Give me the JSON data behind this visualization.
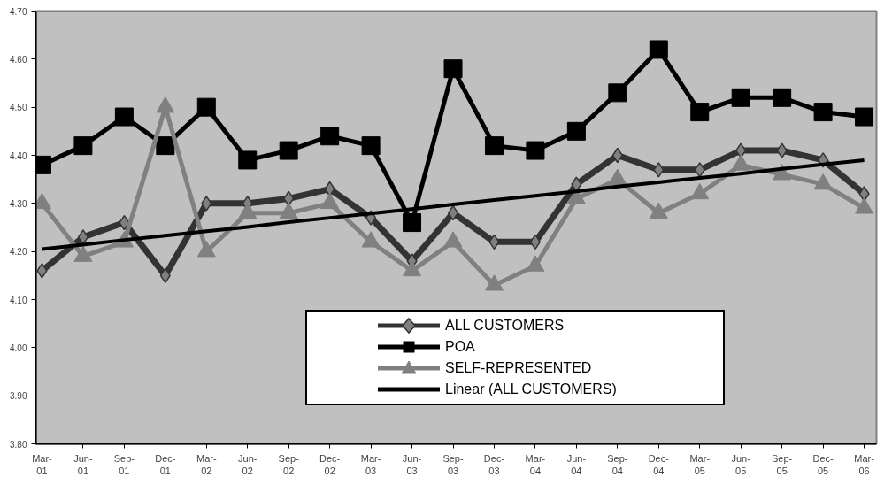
{
  "chart_data": {
    "type": "line",
    "categories": [
      "Mar-01",
      "Jun-01",
      "Sep-01",
      "Dec-01",
      "Mar-02",
      "Jun-02",
      "Sep-02",
      "Dec-02",
      "Mar-03",
      "Jun-03",
      "Sep-03",
      "Dec-03",
      "Mar-04",
      "Jun-04",
      "Sep-04",
      "Dec-04",
      "Mar-05",
      "Jun-05",
      "Sep-05",
      "Dec-05",
      "Mar-06"
    ],
    "series": [
      {
        "name": "ALL CUSTOMERS",
        "color": "#333333",
        "marker": "diamond",
        "values": [
          4.16,
          4.23,
          4.26,
          4.15,
          4.3,
          4.3,
          4.31,
          4.33,
          4.27,
          4.18,
          4.28,
          4.22,
          4.22,
          4.34,
          4.4,
          4.37,
          4.37,
          4.41,
          4.41,
          4.39,
          4.32
        ]
      },
      {
        "name": "POA",
        "color": "#000000",
        "marker": "square",
        "values": [
          4.38,
          4.42,
          4.48,
          4.42,
          4.5,
          4.39,
          4.41,
          4.44,
          4.42,
          4.26,
          4.58,
          4.42,
          4.41,
          4.45,
          4.53,
          4.62,
          4.49,
          4.52,
          4.52,
          4.49,
          4.48
        ]
      },
      {
        "name": "SELF-REPRESENTED",
        "color": "#808080",
        "marker": "triangle",
        "values": [
          4.3,
          4.19,
          4.22,
          4.5,
          4.2,
          4.28,
          4.28,
          4.3,
          4.22,
          4.16,
          4.22,
          4.13,
          4.17,
          4.31,
          4.35,
          4.28,
          4.32,
          4.38,
          4.36,
          4.34,
          4.29
        ]
      },
      {
        "name": "Linear (ALL CUSTOMERS)",
        "color": "#000000",
        "marker": "none",
        "values": [
          4.205,
          4.214,
          4.224,
          4.233,
          4.242,
          4.251,
          4.261,
          4.27,
          4.279,
          4.288,
          4.298,
          4.307,
          4.316,
          4.325,
          4.335,
          4.344,
          4.353,
          4.362,
          4.372,
          4.381,
          4.39
        ]
      }
    ],
    "ylim": [
      3.8,
      4.7
    ],
    "yticks": [
      {
        "value": 3.8,
        "label": "3.80"
      },
      {
        "value": 3.9,
        "label": "3.90"
      },
      {
        "value": 4.0,
        "label": "4.00"
      },
      {
        "value": 4.1,
        "label": "4.10"
      },
      {
        "value": 4.2,
        "label": "4.20"
      },
      {
        "value": 4.3,
        "label": "4.30"
      },
      {
        "value": 4.4,
        "label": "4.40"
      },
      {
        "value": 4.5,
        "label": "4.50"
      },
      {
        "value": 4.6,
        "label": "4.60"
      },
      {
        "value": 4.7,
        "label": "4.70"
      }
    ],
    "grid": false,
    "legend": "bottom"
  }
}
